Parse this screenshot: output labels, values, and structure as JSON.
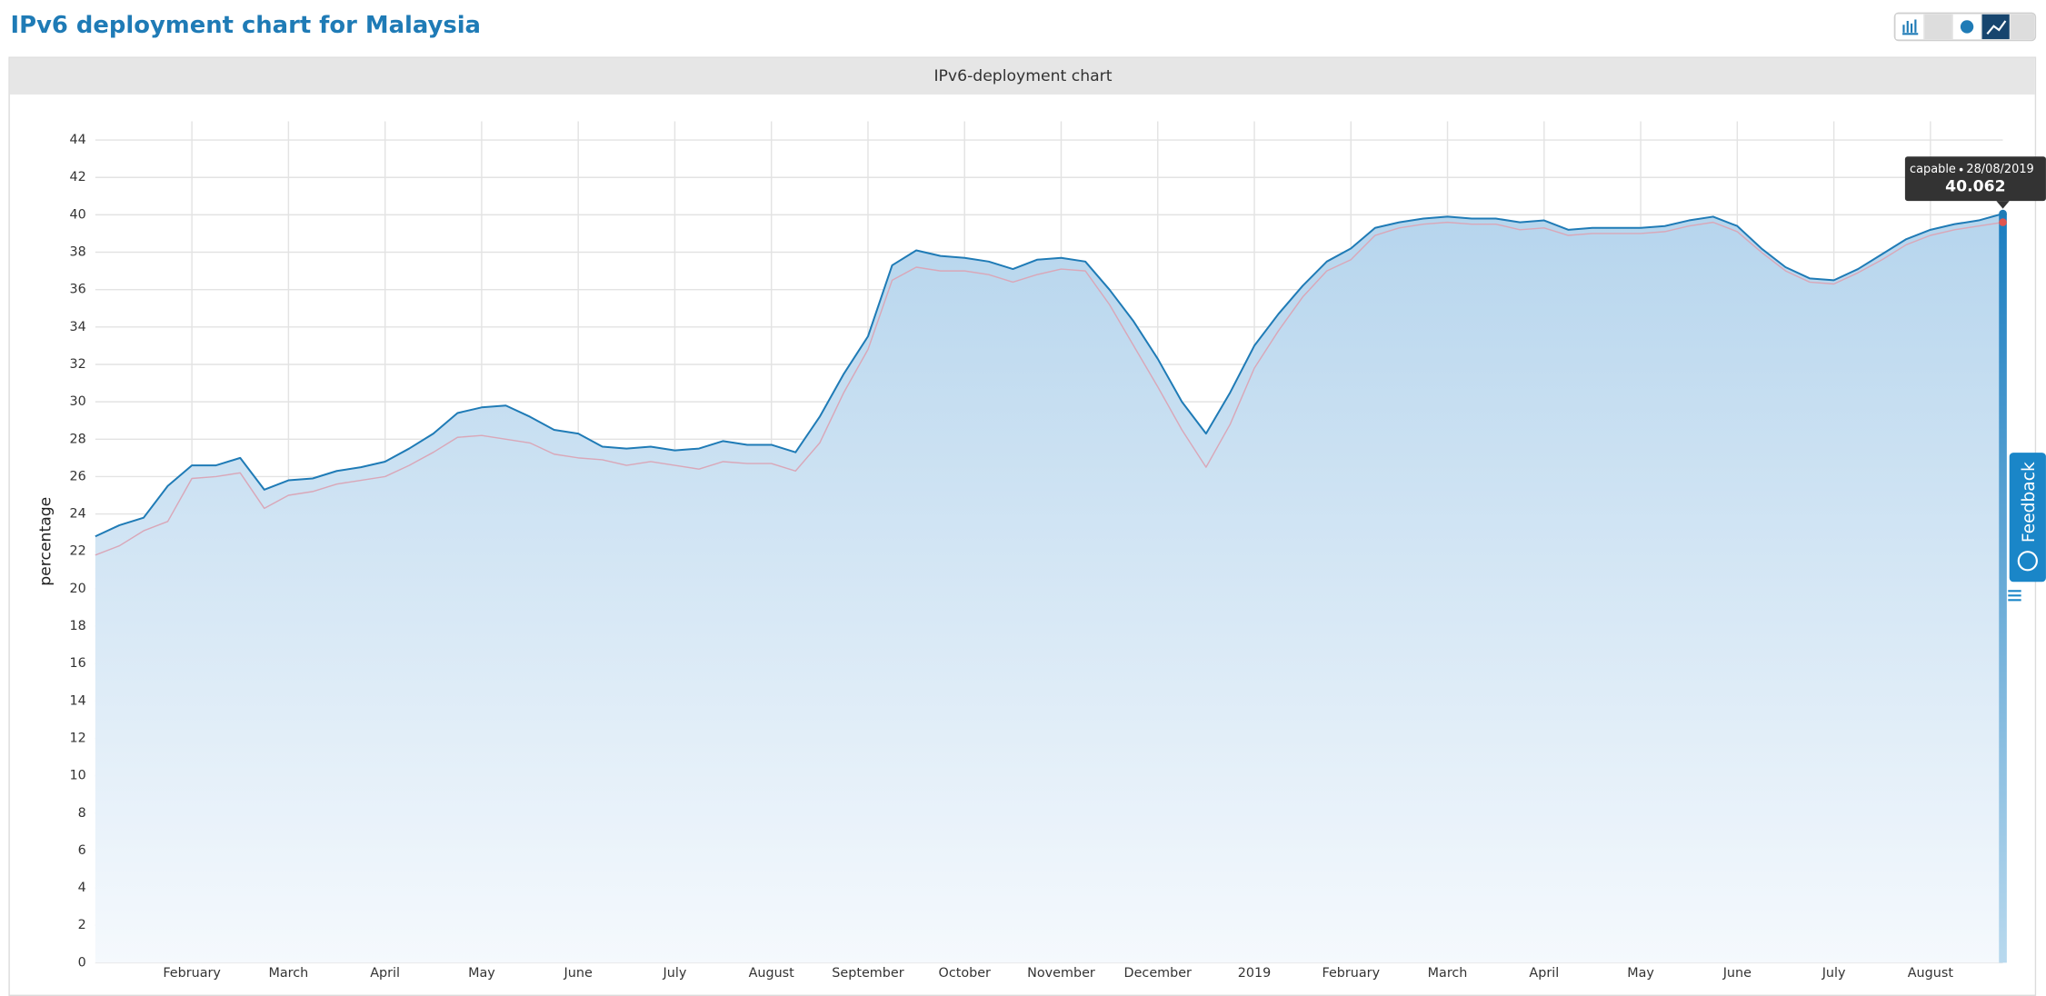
{
  "header": {
    "title": "IPv6 deployment chart for Malaysia"
  },
  "feedback": "Feedback",
  "chart_data": {
    "type": "line",
    "title": "IPv6-deployment chart",
    "y_label": "percentage",
    "categories": [
      null,
      null,
      null,
      null,
      "February",
      null,
      null,
      null,
      "March",
      null,
      null,
      null,
      "April",
      null,
      null,
      null,
      "May",
      null,
      null,
      null,
      "June",
      null,
      null,
      null,
      "July",
      null,
      null,
      null,
      "August",
      null,
      null,
      null,
      "September",
      null,
      null,
      null,
      "October",
      null,
      null,
      null,
      "November",
      null,
      null,
      null,
      "December",
      null,
      null,
      null,
      "2019",
      null,
      null,
      null,
      "February",
      null,
      null,
      null,
      "March",
      null,
      null,
      null,
      "April",
      null,
      null,
      null,
      "May",
      null,
      null,
      null,
      "June",
      null,
      null,
      null,
      "July",
      null,
      null,
      null,
      "August",
      null,
      null,
      null
    ],
    "series": [
      {
        "name": "capable",
        "color": "#1f7bb6",
        "values": [
          22.8,
          23.4,
          23.8,
          25.5,
          26.6,
          26.6,
          27.0,
          25.3,
          25.8,
          25.9,
          26.3,
          26.5,
          26.8,
          27.5,
          28.3,
          29.4,
          29.7,
          29.8,
          29.2,
          28.5,
          28.3,
          27.6,
          27.5,
          27.6,
          27.4,
          27.5,
          27.9,
          27.7,
          27.7,
          27.3,
          29.2,
          31.5,
          33.5,
          37.3,
          38.1,
          37.8,
          37.7,
          37.5,
          37.1,
          37.6,
          37.7,
          37.5,
          36.0,
          34.3,
          32.3,
          30.0,
          28.3,
          30.5,
          33.0,
          34.7,
          36.2,
          37.5,
          38.2,
          39.3,
          39.6,
          39.8,
          39.9,
          39.8,
          39.8,
          39.6,
          39.7,
          39.2,
          39.3,
          39.3,
          39.3,
          39.4,
          39.7,
          39.9,
          39.4,
          38.2,
          37.2,
          36.6,
          36.5,
          37.1,
          37.9,
          38.7,
          39.2,
          39.5,
          39.7,
          40.062
        ]
      },
      {
        "color": "#d9a7b8",
        "values": [
          21.8,
          22.3,
          23.1,
          23.6,
          25.9,
          26.0,
          26.2,
          24.3,
          25.0,
          25.2,
          25.6,
          25.8,
          26.0,
          26.6,
          27.3,
          28.1,
          28.2,
          28.0,
          27.8,
          27.2,
          27.0,
          26.9,
          26.6,
          26.8,
          26.6,
          26.4,
          26.8,
          26.7,
          26.7,
          26.3,
          27.8,
          30.5,
          32.8,
          36.5,
          37.2,
          37.0,
          37.0,
          36.8,
          36.4,
          36.8,
          37.1,
          37.0,
          35.2,
          33.0,
          30.8,
          28.5,
          26.5,
          28.8,
          31.8,
          33.8,
          35.6,
          37.0,
          37.6,
          38.9,
          39.3,
          39.5,
          39.6,
          39.5,
          39.5,
          39.2,
          39.3,
          38.9,
          39.0,
          39.0,
          39.0,
          39.1,
          39.4,
          39.6,
          39.1,
          38.0,
          37.0,
          36.4,
          36.3,
          36.9,
          37.6,
          38.4,
          38.9,
          39.2,
          39.4,
          39.6
        ]
      }
    ],
    "ylim": [
      0,
      45
    ],
    "yticks": [
      0,
      2,
      4,
      6,
      8,
      10,
      12,
      14,
      16,
      18,
      20,
      22,
      24,
      26,
      28,
      30,
      32,
      34,
      36,
      38,
      40,
      42,
      44
    ],
    "grid": true,
    "tooltip": {
      "date": "28/08/2019"
    }
  }
}
